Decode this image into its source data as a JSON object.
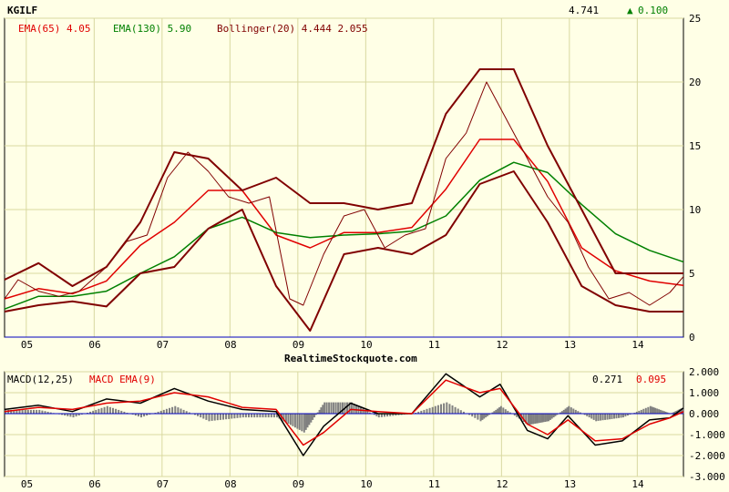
{
  "header": {
    "symbol": "KGILF",
    "last_price": "4.741",
    "change": "0.100",
    "change_arrow": "▲",
    "legend_ema65": "EMA(65) 4.05",
    "legend_ema130": "EMA(130) 5.90",
    "legend_bollinger": "Bollinger(20) 4.444 2.055"
  },
  "watermark": "RealtimeStockquote.com",
  "macd_header": {
    "label": "MACD(12,25)",
    "ema_label": "MACD EMA(9)",
    "macd_value": "0.271",
    "ema_value": "0.095"
  },
  "colors": {
    "background": "#FFFFE6",
    "grid": "#D8D8A0",
    "price": "#800000",
    "ema65": "#E00000",
    "ema130": "#008000",
    "bollinger": "#800000",
    "macd": "#000000",
    "macd_signal": "#E00000",
    "histogram": "#808080",
    "up": "#008000",
    "axis_zero": "#0000C0"
  },
  "chart_data": [
    {
      "type": "line",
      "title": "KGILF",
      "x_ticks": [
        "05",
        "06",
        "07",
        "08",
        "09",
        "10",
        "11",
        "12",
        "13",
        "14"
      ],
      "y_ticks": [
        "0",
        "5",
        "10",
        "15",
        "20",
        "25"
      ],
      "ylim": [
        0,
        25
      ],
      "grid": true,
      "series": [
        {
          "name": "EMA(65)",
          "x": [
            2004.5,
            2005,
            2005.5,
            2006,
            2006.5,
            2007,
            2007.5,
            2008,
            2008.5,
            2009,
            2009.5,
            2010,
            2010.5,
            2011,
            2011.5,
            2012,
            2012.5,
            2013,
            2013.5,
            2014,
            2014.5
          ],
          "values": [
            3.0,
            3.8,
            3.4,
            4.4,
            7.2,
            9.0,
            11.5,
            11.5,
            8.0,
            7.0,
            8.2,
            8.2,
            8.6,
            11.6,
            15.5,
            15.5,
            12.2,
            7.0,
            5.2,
            4.4,
            4.05
          ]
        },
        {
          "name": "EMA(130)",
          "x": [
            2004.5,
            2005,
            2005.5,
            2006,
            2006.5,
            2007,
            2007.5,
            2008,
            2008.5,
            2009,
            2009.5,
            2010,
            2010.5,
            2011,
            2011.5,
            2012,
            2012.5,
            2013,
            2013.5,
            2014,
            2014.5
          ],
          "values": [
            2.2,
            3.2,
            3.2,
            3.6,
            5.0,
            6.3,
            8.5,
            9.4,
            8.2,
            7.8,
            8.0,
            8.1,
            8.3,
            9.5,
            12.3,
            13.7,
            12.9,
            10.4,
            8.1,
            6.8,
            5.9
          ]
        },
        {
          "name": "Bollinger(20) upper",
          "x": [
            2004.5,
            2005,
            2005.5,
            2006,
            2006.5,
            2007,
            2007.5,
            2008,
            2008.5,
            2009,
            2009.5,
            2010,
            2010.5,
            2011,
            2011.5,
            2012,
            2012.5,
            2013,
            2013.5,
            2014,
            2014.5
          ],
          "values": [
            4.5,
            5.8,
            4.0,
            5.5,
            9.0,
            14.5,
            14.0,
            11.5,
            12.5,
            10.5,
            10.5,
            10.0,
            10.5,
            17.5,
            21.0,
            21.0,
            15.0,
            10.0,
            5.0,
            5.0,
            5.0
          ]
        },
        {
          "name": "Bollinger(20) lower",
          "x": [
            2004.5,
            2005,
            2005.5,
            2006,
            2006.5,
            2007,
            2007.5,
            2008,
            2008.5,
            2009,
            2009.5,
            2010,
            2010.5,
            2011,
            2011.5,
            2012,
            2012.5,
            2013,
            2013.5,
            2014,
            2014.5
          ],
          "values": [
            2.0,
            2.5,
            2.8,
            2.4,
            5.0,
            5.5,
            8.5,
            10.0,
            4.0,
            0.5,
            6.5,
            7.0,
            6.5,
            8.0,
            12.0,
            13.0,
            9.0,
            4.0,
            2.5,
            2.0,
            2.0
          ]
        },
        {
          "name": "Price",
          "x": [
            2004.5,
            2004.7,
            2005,
            2005.3,
            2005.6,
            2006,
            2006.3,
            2006.6,
            2006.9,
            2007.2,
            2007.5,
            2007.8,
            2008.1,
            2008.4,
            2008.7,
            2008.9,
            2009.2,
            2009.5,
            2009.8,
            2010.1,
            2010.4,
            2010.7,
            2011,
            2011.3,
            2011.6,
            2011.9,
            2012.2,
            2012.5,
            2012.8,
            2013.1,
            2013.4,
            2013.7,
            2014,
            2014.3,
            2014.5
          ],
          "values": [
            3.0,
            4.5,
            3.6,
            3.2,
            3.6,
            5.5,
            7.5,
            8.0,
            12.5,
            14.5,
            13.0,
            11.0,
            10.5,
            11.0,
            3.0,
            2.5,
            6.5,
            9.5,
            10.0,
            7.0,
            8.0,
            8.5,
            14.0,
            16.0,
            20.0,
            17.0,
            14.0,
            11.0,
            9.0,
            5.5,
            3.0,
            3.5,
            2.5,
            3.5,
            4.741
          ]
        }
      ]
    },
    {
      "type": "line",
      "title": "MACD(12,25)",
      "x_ticks": [
        "05",
        "06",
        "07",
        "08",
        "09",
        "10",
        "11",
        "12",
        "13",
        "14"
      ],
      "y_ticks": [
        "2.000",
        "1.000",
        "0.000",
        "-1.000",
        "-2.000",
        "-3.000"
      ],
      "ylim": [
        -3,
        2
      ],
      "grid": true,
      "series": [
        {
          "name": "MACD(12,25)",
          "x": [
            2004.5,
            2005,
            2005.5,
            2006,
            2006.5,
            2007,
            2007.5,
            2008,
            2008.5,
            2008.9,
            2009.2,
            2009.6,
            2010,
            2010.5,
            2011,
            2011.5,
            2011.8,
            2012.2,
            2012.5,
            2012.8,
            2013.2,
            2013.6,
            2014,
            2014.3,
            2014.5
          ],
          "values": [
            0.2,
            0.4,
            0.1,
            0.7,
            0.5,
            1.2,
            0.6,
            0.2,
            0.1,
            -2.0,
            -0.6,
            0.5,
            0.0,
            0.0,
            1.9,
            0.8,
            1.4,
            -0.8,
            -1.2,
            -0.1,
            -1.5,
            -1.3,
            -0.3,
            -0.2,
            0.271
          ]
        },
        {
          "name": "MACD EMA(9)",
          "x": [
            2004.5,
            2005,
            2005.5,
            2006,
            2006.5,
            2007,
            2007.5,
            2008,
            2008.5,
            2008.9,
            2009.2,
            2009.6,
            2010,
            2010.5,
            2011,
            2011.5,
            2011.8,
            2012.2,
            2012.5,
            2012.8,
            2013.2,
            2013.6,
            2014,
            2014.3,
            2014.5
          ],
          "values": [
            0.1,
            0.3,
            0.2,
            0.5,
            0.6,
            1.0,
            0.8,
            0.3,
            0.2,
            -1.5,
            -0.9,
            0.2,
            0.1,
            0.0,
            1.6,
            1.0,
            1.2,
            -0.5,
            -1.0,
            -0.3,
            -1.3,
            -1.2,
            -0.5,
            -0.2,
            0.095
          ]
        }
      ]
    }
  ]
}
